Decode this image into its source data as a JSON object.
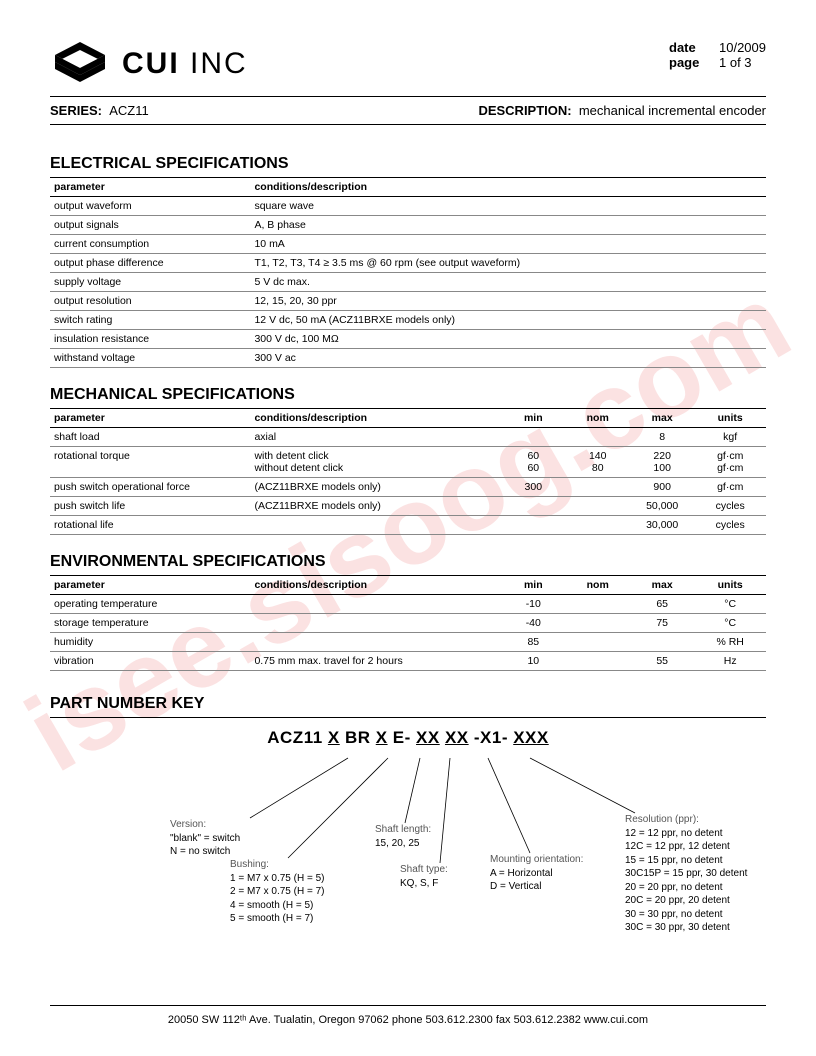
{
  "header": {
    "company_bold": "CUI",
    "company_light": " INC",
    "date_label": "date",
    "date_value": "10/2009",
    "page_label": "page",
    "page_value": "1 of 3"
  },
  "series": {
    "series_label": "SERIES:",
    "series_value": "ACZ11",
    "desc_label": "DESCRIPTION:",
    "desc_value": "mechanical incremental encoder"
  },
  "watermark": "isee.sisoog.com",
  "electrical": {
    "title": "ELECTRICAL SPECIFICATIONS",
    "headers": {
      "param": "parameter",
      "cond": "conditions/description"
    },
    "rows": [
      {
        "param": "output waveform",
        "cond": "square wave"
      },
      {
        "param": "output signals",
        "cond": "A, B phase"
      },
      {
        "param": "current consumption",
        "cond": "10 mA"
      },
      {
        "param": "output phase difference",
        "cond": "T1, T2, T3, T4 ≥ 3.5 ms @ 60 rpm (see output waveform)"
      },
      {
        "param": "supply voltage",
        "cond": "5 V dc max."
      },
      {
        "param": "output resolution",
        "cond": "12, 15, 20, 30 ppr"
      },
      {
        "param": "switch rating",
        "cond": "12 V dc, 50 mA (ACZ11BRXE models only)"
      },
      {
        "param": "insulation resistance",
        "cond": "300 V dc, 100 MΩ"
      },
      {
        "param": "withstand voltage",
        "cond": "300 V ac"
      }
    ]
  },
  "mechanical": {
    "title": "MECHANICAL SPECIFICATIONS",
    "headers": {
      "param": "parameter",
      "cond": "conditions/description",
      "min": "min",
      "nom": "nom",
      "max": "max",
      "units": "units"
    },
    "rows": [
      {
        "param": "shaft load",
        "cond": "axial",
        "min": "",
        "nom": "",
        "max": "8",
        "units": "kgf"
      },
      {
        "param": "rotational torque",
        "cond": "with detent click\nwithout detent click",
        "min": "60\n60",
        "nom": "140\n80",
        "max": "220\n100",
        "units": "gf·cm\ngf·cm"
      },
      {
        "param": "push switch operational force",
        "cond": "(ACZ11BRXE models only)",
        "min": "300",
        "nom": "",
        "max": "900",
        "units": "gf·cm"
      },
      {
        "param": "push switch life",
        "cond": "(ACZ11BRXE models only)",
        "min": "",
        "nom": "",
        "max": "50,000",
        "units": "cycles"
      },
      {
        "param": "rotational life",
        "cond": "",
        "min": "",
        "nom": "",
        "max": "30,000",
        "units": "cycles"
      }
    ]
  },
  "environmental": {
    "title": "ENVIRONMENTAL SPECIFICATIONS",
    "headers": {
      "param": "parameter",
      "cond": "conditions/description",
      "min": "min",
      "nom": "nom",
      "max": "max",
      "units": "units"
    },
    "rows": [
      {
        "param": "operating temperature",
        "cond": "",
        "min": "-10",
        "nom": "",
        "max": "65",
        "units": "°C"
      },
      {
        "param": "storage temperature",
        "cond": "",
        "min": "-40",
        "nom": "",
        "max": "75",
        "units": "°C"
      },
      {
        "param": "humidity",
        "cond": "",
        "min": "85",
        "nom": "",
        "max": "",
        "units": "% RH"
      },
      {
        "param": "vibration",
        "cond": "0.75 mm max. travel for 2 hours",
        "min": "10",
        "nom": "",
        "max": "55",
        "units": "Hz"
      }
    ]
  },
  "partkey": {
    "title": "PART NUMBER KEY",
    "pattern_prefix": "ACZ11 ",
    "pattern_parts": [
      "X",
      " BR ",
      "X",
      " E- ",
      "XX",
      " ",
      "XX",
      " -X1- ",
      "XXX"
    ],
    "callouts": {
      "version": {
        "head": "Version:",
        "body": "\"blank\" = switch\nN = no switch"
      },
      "bushing": {
        "head": "Bushing:",
        "body": "1 = M7 x 0.75 (H = 5)\n2 = M7 x 0.75 (H = 7)\n4 = smooth (H = 5)\n5 = smooth (H = 7)"
      },
      "shaftlen": {
        "head": "Shaft length:",
        "body": "15, 20, 25"
      },
      "shafttype": {
        "head": "Shaft type:",
        "body": "KQ, S, F"
      },
      "mount": {
        "head": "Mounting orientation:",
        "body": "A = Horizontal\nD = Vertical"
      },
      "resolution": {
        "head": "Resolution (ppr):",
        "body": "12 = 12 ppr, no detent\n12C = 12 ppr, 12 detent\n15 = 15 ppr, no detent\n30C15P = 15 ppr, 30 detent\n20 = 20 ppr, no detent\n20C = 20 ppr, 20 detent\n30 = 30 ppr, no detent\n30C = 30 ppr, 30 detent"
      }
    }
  },
  "footer": {
    "text": "20050 SW 112ᵗʰ Ave. Tualatin, Oregon 97062    phone 503.612.2300    fax 503.612.2382    www.cui.com"
  }
}
